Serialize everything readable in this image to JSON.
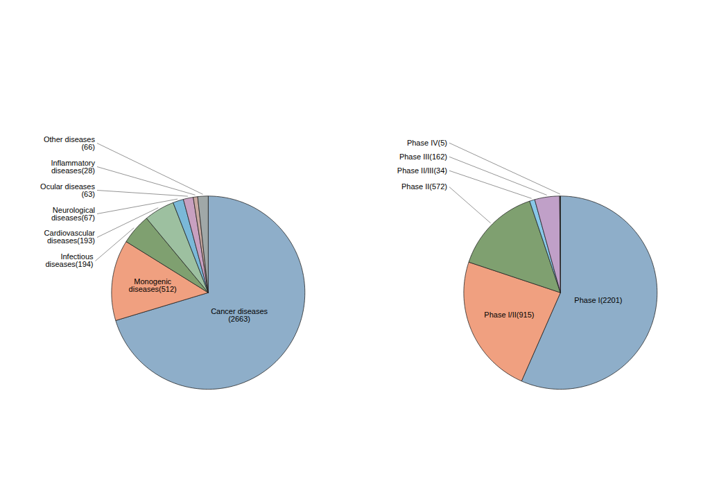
{
  "chart_data": [
    {
      "type": "pie",
      "categories": [
        "Cancer diseases\n(2663)",
        "Monogenic\ndiseases(512)",
        "Infectious\ndiseases(194)",
        "Cardiovascular\ndiseases(193)",
        "Neurological\ndiseases(67)",
        "Ocular diseases\n(63)",
        "Inflammatory\ndiseases(28)",
        "Other diseases\n(66)"
      ],
      "values": [
        2663,
        512,
        194,
        193,
        67,
        63,
        28,
        66
      ],
      "colors": [
        "#8eaec9",
        "#f0a080",
        "#7fa070",
        "#9dc0a0",
        "#7ab8d8",
        "#c8a0c0",
        "#c8a8a0",
        "#a0a8a8"
      ]
    },
    {
      "type": "pie",
      "categories": [
        "Phase I(2201)",
        "Phase I/II(915)",
        "Phase II(572)",
        "Phase II/III(34)",
        "Phase III(162)",
        "Phase IV(5)"
      ],
      "values": [
        2201,
        915,
        572,
        34,
        162,
        5
      ],
      "colors": [
        "#8eaec9",
        "#f0a080",
        "#7fa070",
        "#88c8e8",
        "#c0a0c8",
        "#303030"
      ]
    }
  ]
}
